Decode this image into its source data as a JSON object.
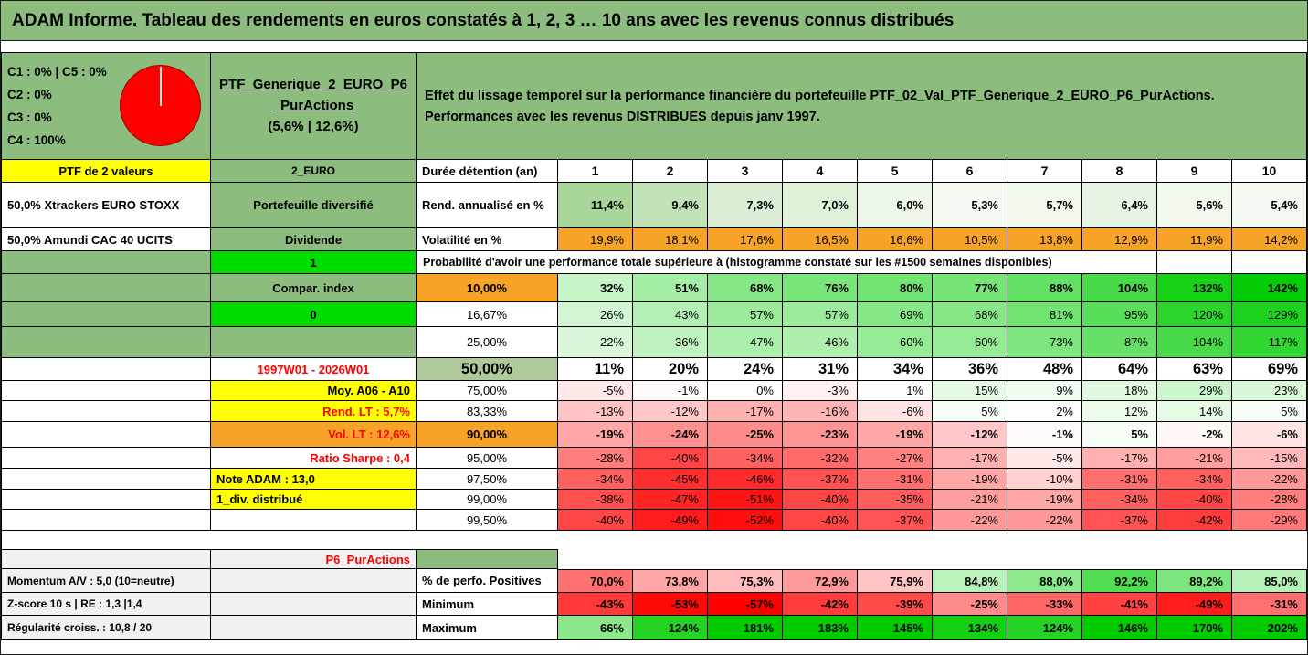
{
  "title": "ADAM Informe. Tableau des rendements en euros constatés à 1, 2, 3 … 10 ans avec les revenus connus distribués",
  "colors": {
    "header_green": "#8CBD7F",
    "bright_green": "#00DC00",
    "yellow": "#FFFF00",
    "orange": "#F6A327",
    "sage": "#AFC89C",
    "gray": "#F1F1F1",
    "red_text": "#FF0000",
    "scale_positive_green": "#00CC00",
    "scale_negative_red": "#FF0000",
    "pie_color": "#FF0000"
  },
  "allocation": {
    "lines": [
      "C1 : 0% | C5 : 0%",
      "C2 : 0%",
      "C3 : 0%",
      "C4 : 100%"
    ],
    "pie": {
      "label": "C4",
      "value": 100
    }
  },
  "portfolio": {
    "lines": [
      "PTF_Generique_2_EURO_P6",
      "_PurActions",
      "(5,6% | 12,6%)"
    ]
  },
  "description": {
    "lines": [
      "Effet du lissage temporel sur la performance financière du portefeuille PTF_02_Val_PTF_Generique_2_EURO_P6_PurActions.",
      "Performances avec les revenus DISTRIBUES depuis janv 1997."
    ]
  },
  "grid": {
    "years": [
      1,
      2,
      3,
      4,
      5,
      6,
      7,
      8,
      9,
      10
    ],
    "span_text": "Probabilité d'avoir une performance totale supérieure à (histogramme constaté sur les #1500 semaines disponibles)",
    "rows": [
      {
        "id": "years",
        "c1": {
          "t": "PTF de 2 valeurs",
          "cls": "bg-yellow bold center"
        },
        "c2": {
          "t": "2_EURO",
          "cls": "bg-green bold center sm"
        },
        "c3": {
          "t": "Durée détention (an)",
          "cls": "bg-white bold left"
        },
        "data": {
          "type": "years"
        }
      },
      {
        "id": "rend",
        "c1": {
          "t": "50,0% Xtrackers EURO STOXX",
          "cls": "bg-white bold left"
        },
        "c2": {
          "t": "Portefeuille diversifié",
          "cls": "bg-green bold center"
        },
        "c3": {
          "t": "Rend. annualisé en %",
          "cls": "bg-white bold left"
        },
        "data": {
          "type": "vals",
          "fmt": "p1",
          "scale": "rend",
          "bold": true,
          "vals": [
            11.4,
            9.4,
            7.3,
            7.0,
            6.0,
            5.3,
            5.7,
            6.4,
            5.6,
            5.4
          ]
        }
      },
      {
        "id": "vol",
        "c1": {
          "t": "50,0% Amundi CAC 40 UCITS",
          "cls": "bg-white bold left"
        },
        "c2": {
          "t": "Dividende",
          "cls": "bg-green bold center"
        },
        "c3": {
          "t": "Volatilité en %",
          "cls": "bg-white bold left"
        },
        "data": {
          "type": "vals",
          "fmt": "p1",
          "scale": "orange",
          "vals": [
            19.9,
            18.1,
            17.6,
            16.5,
            16.6,
            10.5,
            13.8,
            12.9,
            11.9,
            14.2
          ]
        }
      },
      {
        "id": "proba",
        "c1": {
          "t": "",
          "cls": "bg-green"
        },
        "c2": {
          "t": "1",
          "cls": "bg-bright bold center"
        },
        "data": {
          "type": "span"
        }
      },
      {
        "id": "p10",
        "c1": {
          "t": "",
          "cls": "bg-green"
        },
        "c2": {
          "t": "Compar. index",
          "cls": "bg-green bold center",
          "marker": true
        },
        "c3": {
          "t": "10,00%",
          "cls": "bg-orange bold center"
        },
        "data": {
          "type": "vals",
          "fmt": "p0",
          "scale": "div",
          "bold": true,
          "vals": [
            32,
            51,
            68,
            76,
            80,
            77,
            88,
            104,
            132,
            142
          ]
        }
      },
      {
        "id": "p16",
        "c1": {
          "t": "",
          "cls": "bg-green"
        },
        "c2": {
          "t": "0",
          "cls": "bg-bright bold center",
          "marker": true
        },
        "c3": {
          "t": "16,67%",
          "cls": "bg-white center"
        },
        "data": {
          "type": "vals",
          "fmt": "p0",
          "scale": "div",
          "vals": [
            26,
            43,
            57,
            57,
            69,
            68,
            81,
            95,
            120,
            129
          ]
        }
      },
      {
        "id": "p25",
        "c1": {
          "t": "",
          "cls": "bg-green"
        },
        "c2": {
          "t": "",
          "cls": "bg-green"
        },
        "c3": {
          "t": "25,00%",
          "cls": "bg-white center"
        },
        "data": {
          "type": "vals",
          "fmt": "p0",
          "scale": "div",
          "vals": [
            22,
            36,
            47,
            46,
            60,
            60,
            73,
            87,
            104,
            117
          ]
        }
      },
      {
        "id": "p50",
        "c1": {
          "t": "",
          "cls": "bg-white"
        },
        "c2": {
          "t": "1997W01 - 2026W01",
          "cls": "bg-white red bold center"
        },
        "c3": {
          "t": "50,00%",
          "cls": "bg-sage bold center big"
        },
        "data": {
          "type": "vals",
          "fmt": "p0",
          "scale": "none",
          "bold": true,
          "big": true,
          "vals": [
            11,
            20,
            24,
            31,
            34,
            36,
            48,
            64,
            63,
            69
          ]
        }
      },
      {
        "id": "p75",
        "c1": {
          "t": "",
          "cls": "bg-white"
        },
        "c2": {
          "t": "Moy. A06 - A10",
          "cls": "bg-yellow bold right"
        },
        "c3": {
          "t": "75,00%",
          "cls": "bg-white center"
        },
        "data": {
          "type": "vals",
          "fmt": "p0",
          "scale": "div",
          "vals": [
            -5,
            -1,
            0,
            -3,
            1,
            15,
            9,
            18,
            29,
            23
          ]
        }
      },
      {
        "id": "p83",
        "c1": {
          "t": "",
          "cls": "bg-white"
        },
        "c2": {
          "t": "Rend. LT : 5,7%",
          "cls": "bg-yellow red bold right"
        },
        "c3": {
          "t": "83,33%",
          "cls": "bg-white center"
        },
        "data": {
          "type": "vals",
          "fmt": "p0",
          "scale": "div",
          "vals": [
            -13,
            -12,
            -17,
            -16,
            -6,
            5,
            2,
            12,
            14,
            5
          ]
        }
      },
      {
        "id": "p90",
        "c1": {
          "t": "",
          "cls": "bg-white"
        },
        "c2": {
          "t": "Vol. LT : 12,6%",
          "cls": "bg-orange red bold right"
        },
        "c3": {
          "t": "90,00%",
          "cls": "bg-orange bold center"
        },
        "data": {
          "type": "vals",
          "fmt": "p0",
          "scale": "div",
          "bold": true,
          "vals": [
            -19,
            -24,
            -25,
            -23,
            -19,
            -12,
            -1,
            5,
            -2,
            -6
          ]
        }
      },
      {
        "id": "p95",
        "c1": {
          "t": "",
          "cls": "bg-white"
        },
        "c2": {
          "t": "Ratio Sharpe : 0,4",
          "cls": "bg-white red bold right"
        },
        "c3": {
          "t": "95,00%",
          "cls": "bg-white center"
        },
        "data": {
          "type": "vals",
          "fmt": "p0",
          "scale": "div",
          "vals": [
            -28,
            -40,
            -34,
            -32,
            -27,
            -17,
            -5,
            -17,
            -21,
            -15
          ]
        }
      },
      {
        "id": "p97",
        "c1": {
          "t": "",
          "cls": "bg-white"
        },
        "c2": {
          "t": "Note ADAM : 13,0",
          "cls": "bg-yellow bold left"
        },
        "c3": {
          "t": "97,50%",
          "cls": "bg-white center"
        },
        "data": {
          "type": "vals",
          "fmt": "p0",
          "scale": "div",
          "vals": [
            -34,
            -45,
            -46,
            -37,
            -31,
            -19,
            -10,
            -31,
            -34,
            -22
          ]
        }
      },
      {
        "id": "p99",
        "c1": {
          "t": "",
          "cls": "bg-white"
        },
        "c2": {
          "t": "1_div. distribué",
          "cls": "bg-yellow bold left"
        },
        "c3": {
          "t": "99,00%",
          "cls": "bg-white center"
        },
        "data": {
          "type": "vals",
          "fmt": "p0",
          "scale": "div",
          "vals": [
            -38,
            -47,
            -51,
            -40,
            -35,
            -21,
            -19,
            -34,
            -40,
            -28
          ]
        }
      },
      {
        "id": "p995",
        "c1": {
          "t": "",
          "cls": "bg-white"
        },
        "c2": {
          "t": "",
          "cls": "bg-white"
        },
        "c3": {
          "t": "99,50%",
          "cls": "bg-white center"
        },
        "data": {
          "type": "vals",
          "fmt": "p0",
          "scale": "div",
          "vals": [
            -40,
            -49,
            -52,
            -40,
            -37,
            -22,
            -22,
            -37,
            -42,
            -29
          ]
        }
      },
      {
        "id": "spacer"
      },
      {
        "id": "p6row",
        "c1": {
          "t": "",
          "cls": "bg-gray bt"
        },
        "c2": {
          "t": "P6_PurActions",
          "cls": "bg-gray red bold right bt"
        },
        "c3": {
          "t": "",
          "cls": "bg-green bt"
        },
        "data": {
          "type": "plain"
        }
      },
      {
        "id": "positives",
        "c1": {
          "t": "Momentum A/V : 5,0 (10=neutre)",
          "cls": "bg-gray bold left sm"
        },
        "c2": {
          "t": "",
          "cls": "bg-gray"
        },
        "c3": {
          "t": "% de perfo. Positives",
          "cls": "bg-white bold left"
        },
        "data": {
          "type": "vals",
          "fmt": "p1",
          "scale": "pos",
          "bold": true,
          "bt": true,
          "vals": [
            70.0,
            73.8,
            75.3,
            72.9,
            75.9,
            84.8,
            88.0,
            92.2,
            89.2,
            85.0
          ]
        }
      },
      {
        "id": "minimum",
        "c1": {
          "t": "Z-score 10 s | RE : 1,3 |1,4",
          "cls": "bg-gray bold left sm"
        },
        "c2": {
          "t": "",
          "cls": "bg-gray"
        },
        "c3": {
          "t": "Minimum",
          "cls": "bg-white bold left"
        },
        "data": {
          "type": "vals",
          "fmt": "p0",
          "scale": "div",
          "bold": true,
          "vals": [
            -43,
            -53,
            -57,
            -42,
            -39,
            -25,
            -33,
            -41,
            -49,
            -31
          ]
        }
      },
      {
        "id": "maximum",
        "c1": {
          "t": "Régularité croiss. : 10,8 / 20",
          "cls": "bg-gray bold left sm"
        },
        "c2": {
          "t": "",
          "cls": "bg-gray"
        },
        "c3": {
          "t": "Maximum",
          "cls": "bg-white bold left"
        },
        "data": {
          "type": "vals",
          "fmt": "p0",
          "scale": "div",
          "bold": true,
          "vals": [
            66,
            124,
            181,
            183,
            145,
            134,
            124,
            146,
            170,
            202
          ]
        }
      }
    ]
  }
}
